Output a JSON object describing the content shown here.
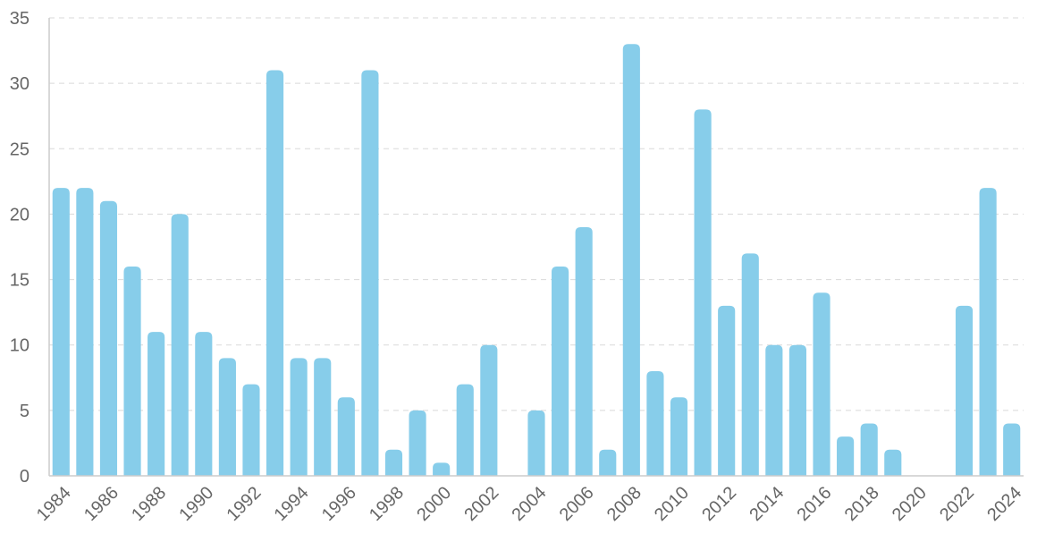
{
  "chart_data": {
    "type": "bar",
    "title": "",
    "xlabel": "",
    "ylabel": "",
    "ylim": [
      0,
      35
    ],
    "yticks": [
      0,
      5,
      10,
      15,
      20,
      25,
      30,
      35
    ],
    "grid": true,
    "legend": "none",
    "bar_color": "#87cdea",
    "categories": [
      "1984",
      "1985",
      "1986",
      "1987",
      "1988",
      "1989",
      "1990",
      "1991",
      "1992",
      "1993",
      "1994",
      "1995",
      "1996",
      "1997",
      "1998",
      "1999",
      "2000",
      "2001",
      "2002",
      "2003",
      "2004",
      "2005",
      "2006",
      "2007",
      "2008",
      "2009",
      "2010",
      "2011",
      "2012",
      "2013",
      "2014",
      "2015",
      "2016",
      "2017",
      "2018",
      "2019",
      "2020",
      "2021",
      "2022",
      "2023",
      "2024"
    ],
    "xtick_labels": [
      "1984",
      "1986",
      "1988",
      "1990",
      "1992",
      "1994",
      "1996",
      "1998",
      "2000",
      "2002",
      "2004",
      "2006",
      "2008",
      "2010",
      "2012",
      "2014",
      "2016",
      "2018",
      "2020",
      "2022",
      "2024"
    ],
    "values": [
      22,
      22,
      21,
      16,
      11,
      20,
      11,
      9,
      7,
      31,
      9,
      9,
      6,
      31,
      2,
      5,
      1,
      7,
      10,
      0,
      5,
      16,
      19,
      2,
      33,
      8,
      6,
      28,
      13,
      17,
      10,
      10,
      14,
      3,
      4,
      2,
      0,
      0,
      13,
      22,
      4
    ]
  }
}
